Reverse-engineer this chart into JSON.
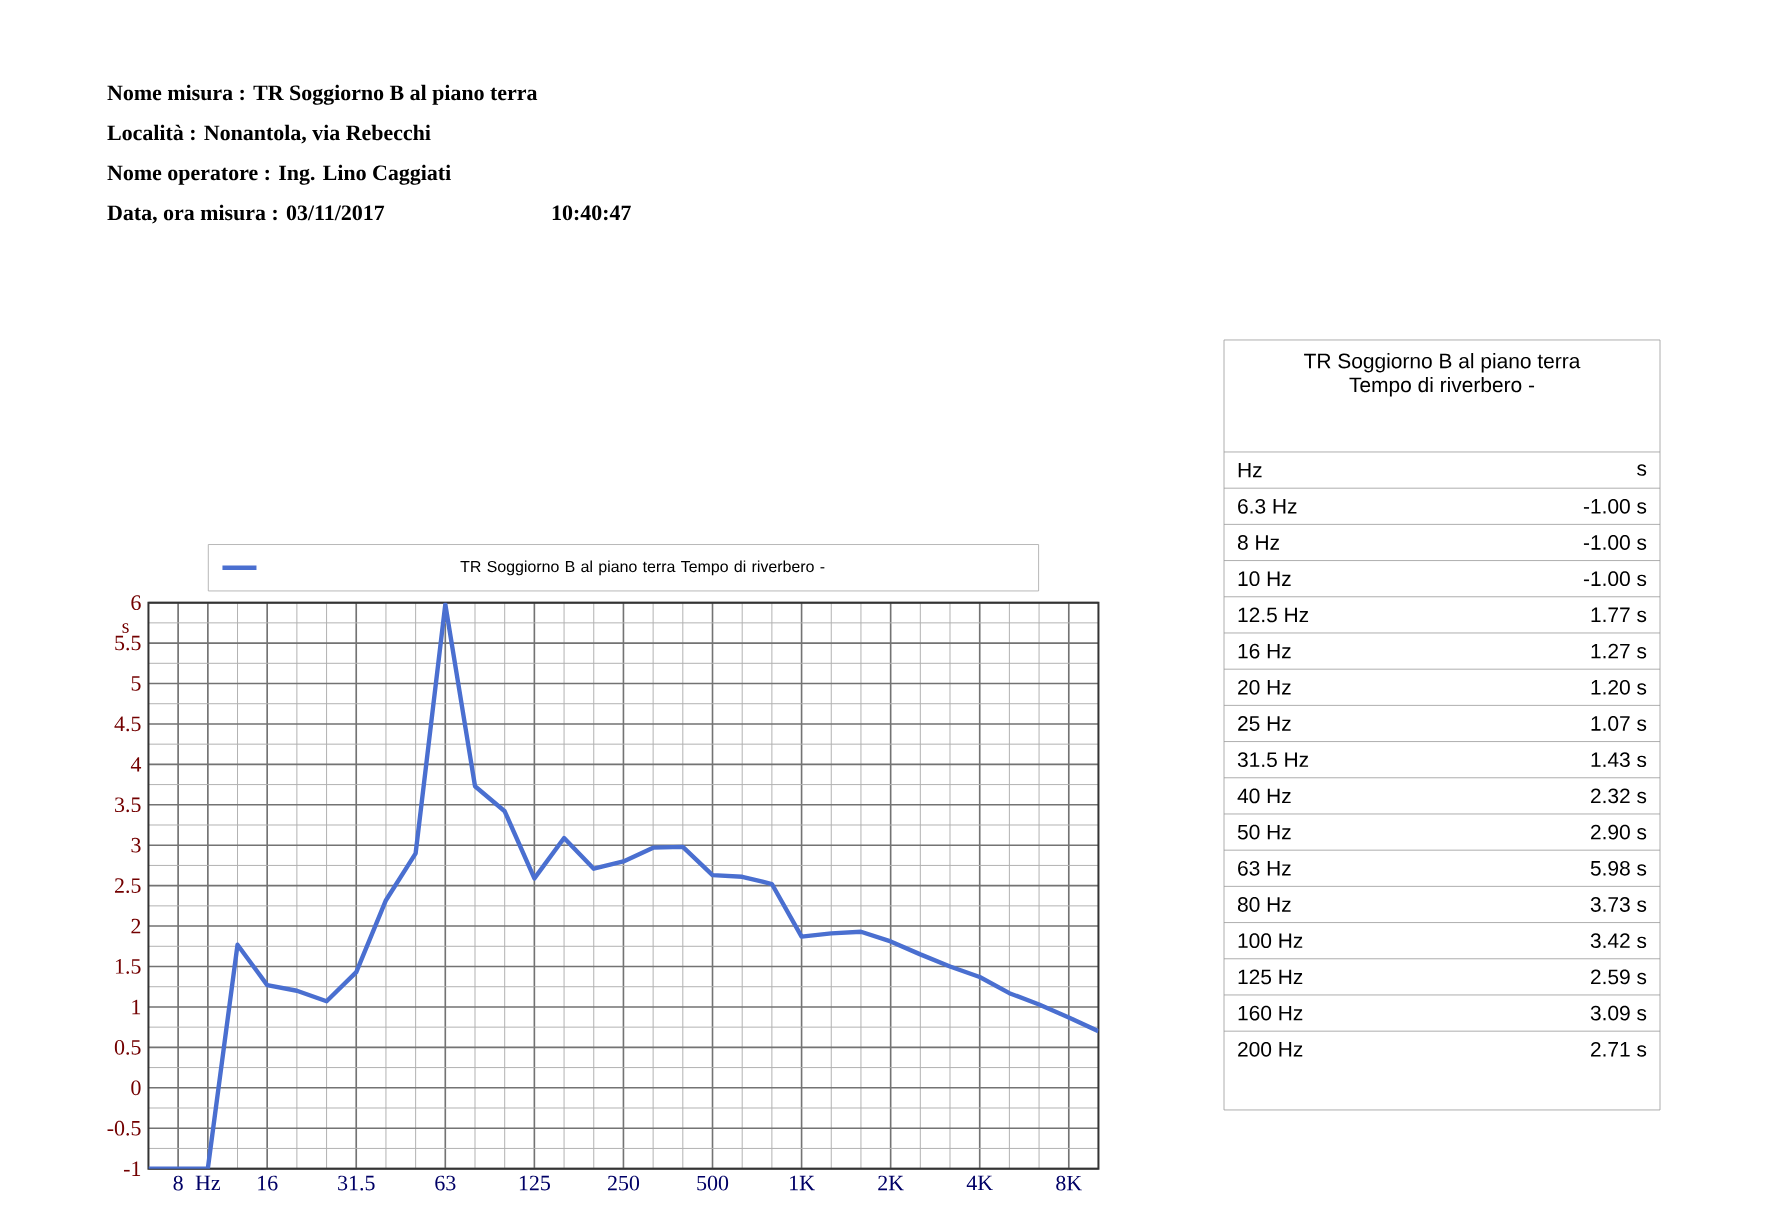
{
  "chart_data": [
    {
      "type": "line",
      "annotations": [
        "Nome misura : TR Soggiorno B al piano terra",
        "Località : Nonantola, via Rebecchi",
        "Nome operatore : Ing. Lino Caggiati",
        "Data, ora misura : 03/11/2017",
        "10:40:47"
      ],
      "ylabel": "s",
      "categories": [
        null,
        "8",
        "Hz",
        null,
        "16",
        null,
        null,
        "31.5",
        null,
        null,
        "63",
        null,
        null,
        "125",
        null,
        null,
        "250",
        null,
        null,
        "500",
        null,
        null,
        "1K",
        null,
        null,
        "2K",
        null,
        null,
        "4K",
        null,
        null,
        "8K",
        null
      ],
      "series": [
        {
          "name": "TR Soggiorno B al piano terra Tempo di riverbero -",
          "color": "#4a6fd0",
          "values": [
            -1.0,
            -1.0,
            -1.0,
            1.77,
            1.27,
            1.2,
            1.07,
            1.43,
            2.32,
            2.9,
            5.98,
            3.73,
            3.42,
            2.59,
            3.09,
            2.71,
            2.8,
            2.97,
            2.98,
            2.63,
            2.61,
            2.52,
            1.87,
            1.91,
            1.93,
            1.81,
            1.65,
            1.5,
            1.37,
            1.17,
            1.03,
            0.87,
            0.7
          ]
        }
      ],
      "ylim": [
        -1,
        6
      ],
      "yticks": [
        -1,
        {
          "value": -0.5,
          "label": "-0.5"
        },
        0,
        0.5,
        1,
        1.5,
        2,
        2.5,
        3,
        3.5,
        4,
        4.5,
        5,
        5.5,
        6
      ],
      "grid": true,
      "legend": "top"
    },
    {
      "type": "other",
      "title": "TR Soggiorno B al piano terra",
      "subtitle": "Tempo di riverbero -",
      "xlabel": "Hz",
      "ylabel": "s",
      "categories": [
        "6.3 Hz",
        "8 Hz",
        "10 Hz",
        "12.5 Hz",
        "16 Hz",
        "20 Hz",
        "25 Hz",
        "31.5 Hz",
        "40 Hz",
        "50 Hz",
        "63 Hz",
        "80 Hz",
        "100 Hz",
        "125 Hz",
        "160 Hz",
        "200 Hz"
      ],
      "value_labels": [
        "-1.00 s",
        "-1.00 s",
        "-1.00 s",
        "1.77 s",
        "1.27 s",
        "1.20 s",
        "1.07 s",
        "1.43 s",
        "2.32 s",
        "2.90 s",
        "5.98 s",
        "3.73 s",
        "3.42 s",
        "2.59 s",
        "3.09 s",
        "2.71 s"
      ]
    }
  ]
}
